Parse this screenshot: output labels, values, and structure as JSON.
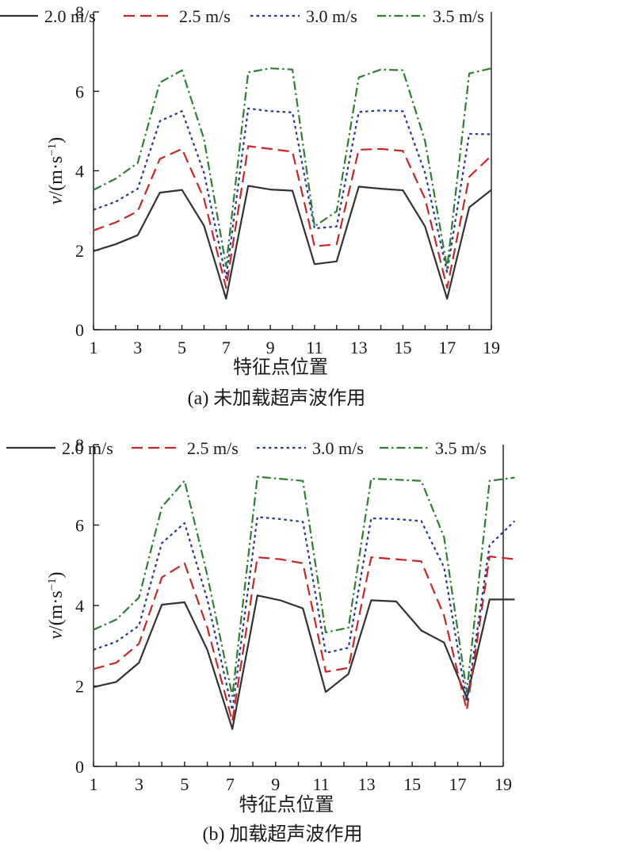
{
  "chart_data": [
    {
      "type": "line",
      "caption": "(a) 未加载超声波作用",
      "xlabel": "特征点位置",
      "ylabel_main": "v",
      "ylabel_unit": "/(m·s",
      "ylabel_sup": "−1",
      "ylabel_close": ")",
      "xlim": [
        1,
        19
      ],
      "ylim": [
        0,
        8
      ],
      "xticks": [
        "1",
        "3",
        "5",
        "7",
        "9",
        "11",
        "13",
        "15",
        "17",
        "19"
      ],
      "yticks": [
        "0",
        "2",
        "4",
        "6",
        "8"
      ],
      "legend_position": "top",
      "x": [
        1,
        2,
        3,
        4,
        5,
        6,
        7,
        8,
        9,
        10,
        11,
        12,
        13,
        14,
        15,
        16,
        17,
        18,
        19
      ],
      "series": [
        {
          "name": "2.0 m/s",
          "color": "#333333",
          "dash": "solid",
          "values": [
            1.98,
            2.15,
            2.38,
            3.45,
            3.52,
            2.62,
            0.78,
            3.62,
            3.53,
            3.5,
            1.65,
            1.72,
            3.6,
            3.55,
            3.51,
            2.6,
            0.78,
            3.08,
            3.52
          ]
        },
        {
          "name": "2.5 m/s",
          "color": "#c62828",
          "dash": "long",
          "values": [
            2.5,
            2.7,
            2.98,
            4.3,
            4.55,
            3.3,
            1.05,
            4.62,
            4.55,
            4.48,
            2.1,
            2.15,
            4.53,
            4.55,
            4.5,
            3.3,
            1.05,
            3.85,
            4.38
          ]
        },
        {
          "name": "3.0 m/s",
          "color": "#283593",
          "dash": "short",
          "values": [
            3.02,
            3.22,
            3.55,
            5.25,
            5.5,
            3.95,
            1.3,
            5.57,
            5.5,
            5.47,
            2.55,
            2.6,
            5.48,
            5.52,
            5.5,
            3.95,
            1.45,
            4.93,
            4.92
          ]
        },
        {
          "name": "3.5 m/s",
          "color": "#2e7d32",
          "dash": "dashdot",
          "values": [
            3.52,
            3.8,
            4.2,
            6.22,
            6.53,
            4.8,
            1.6,
            6.48,
            6.58,
            6.55,
            2.6,
            2.98,
            6.35,
            6.55,
            6.53,
            4.75,
            1.55,
            6.45,
            6.58
          ]
        }
      ]
    },
    {
      "type": "line",
      "caption": "(b) 加载超声波作用",
      "xlabel": "特征点位置",
      "ylabel_main": "v",
      "ylabel_unit": "/(m·s",
      "ylabel_sup": "−1",
      "ylabel_close": ")",
      "xlim": [
        1,
        19
      ],
      "ylim": [
        0,
        8
      ],
      "xticks": [
        "1",
        "3",
        "5",
        "7",
        "9",
        "11",
        "13",
        "15",
        "17",
        "19"
      ],
      "yticks": [
        "0",
        "2",
        "4",
        "6",
        "8"
      ],
      "legend_position": "top",
      "x": [
        1,
        2,
        3,
        4,
        5,
        6,
        7.1,
        8.2,
        9.2,
        10.2,
        11.2,
        12.2,
        13.2,
        14.3,
        15.4,
        16.4,
        17.4,
        18.4,
        19.5
      ],
      "series": [
        {
          "name": "2.0 m/s",
          "color": "#333333",
          "dash": "solid",
          "values": [
            1.97,
            2.1,
            2.58,
            4.02,
            4.08,
            2.9,
            0.93,
            4.25,
            4.13,
            3.93,
            1.85,
            2.3,
            4.13,
            4.1,
            3.38,
            3.08,
            1.7,
            4.15,
            4.15
          ]
        },
        {
          "name": "2.5 m/s",
          "color": "#c62828",
          "dash": "long",
          "values": [
            2.42,
            2.58,
            3.05,
            4.7,
            5.05,
            3.45,
            1.12,
            5.2,
            5.15,
            5.05,
            2.35,
            2.45,
            5.2,
            5.15,
            5.1,
            3.75,
            1.4,
            5.22,
            5.15
          ]
        },
        {
          "name": "3.0 m/s",
          "color": "#283593",
          "dash": "short",
          "values": [
            2.9,
            3.1,
            3.5,
            5.55,
            6.05,
            4.15,
            1.4,
            6.2,
            6.15,
            6.08,
            2.82,
            2.95,
            6.17,
            6.15,
            6.1,
            4.95,
            1.6,
            5.5,
            6.1
          ]
        },
        {
          "name": "3.5 m/s",
          "color": "#2e7d32",
          "dash": "dashdot",
          "values": [
            3.4,
            3.65,
            4.2,
            6.45,
            7.1,
            4.75,
            1.75,
            7.2,
            7.15,
            7.1,
            3.33,
            3.45,
            7.15,
            7.13,
            7.1,
            5.7,
            1.85,
            7.1,
            7.18
          ]
        }
      ]
    }
  ]
}
